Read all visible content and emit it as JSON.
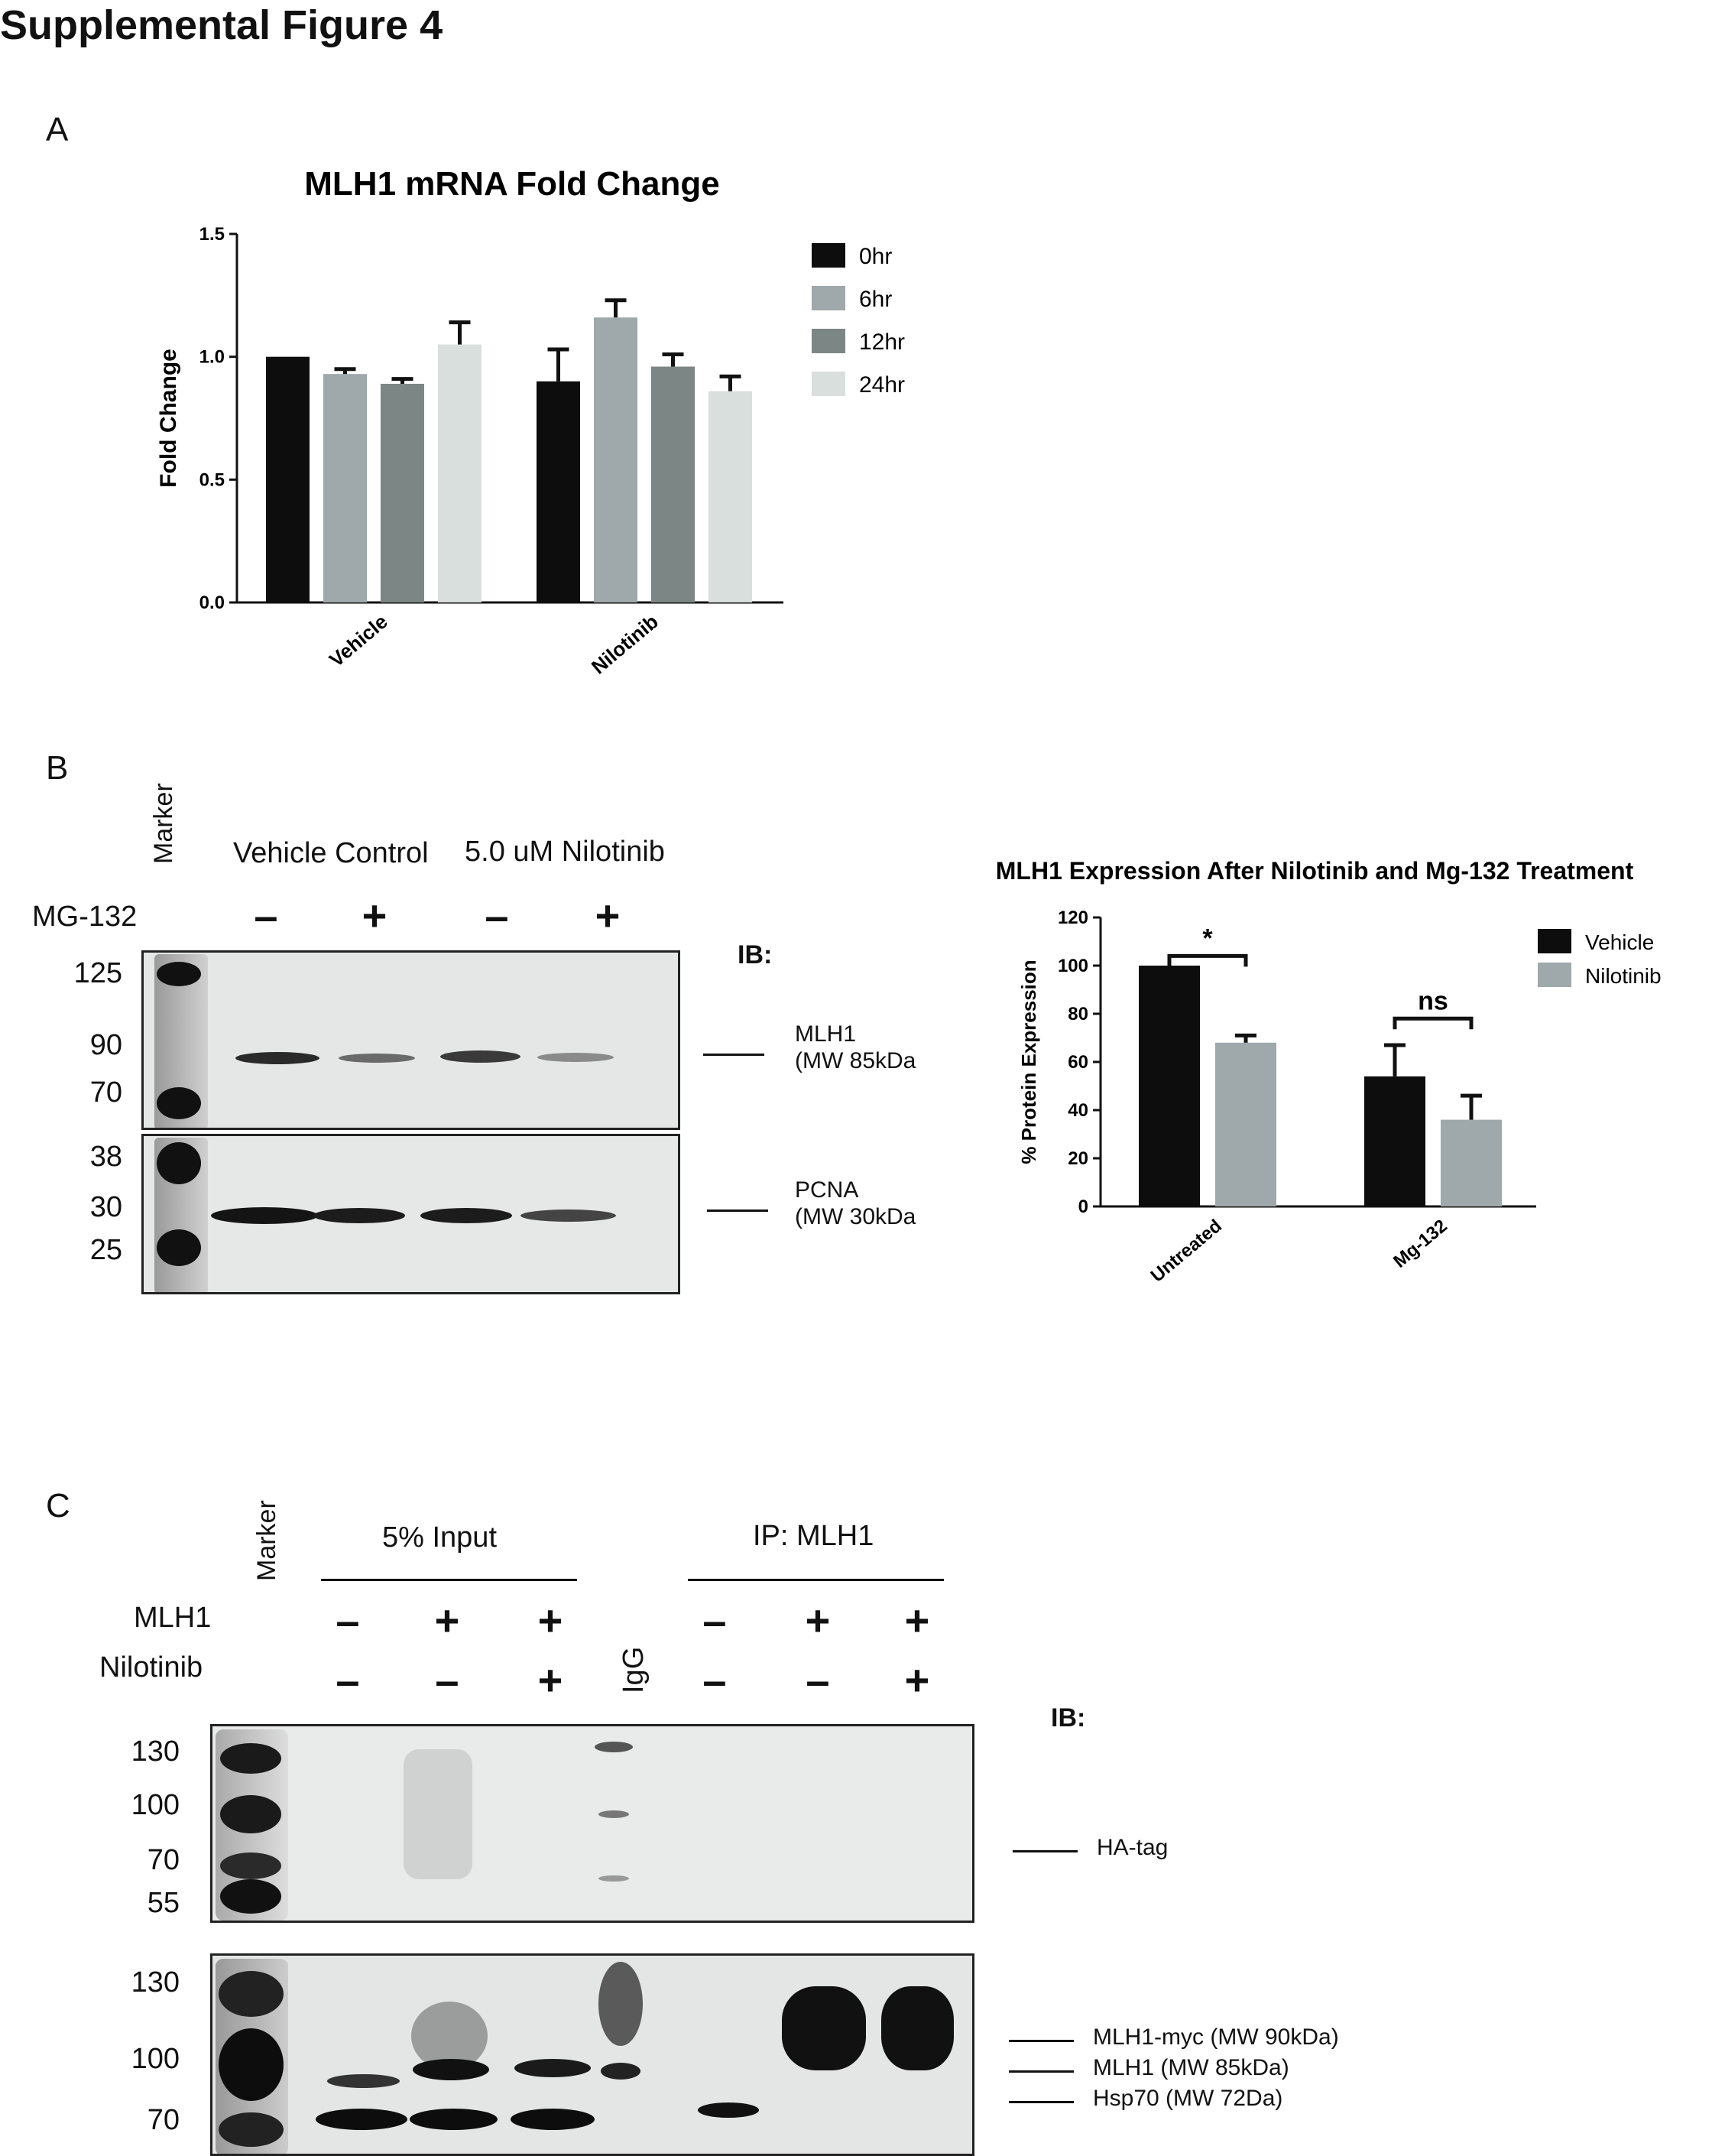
{
  "figure_title": "Supplemental Figure 4",
  "panels": {
    "a": "A",
    "b": "B",
    "c": "C"
  },
  "chart_data": [
    {
      "type": "bar",
      "title": "MLH1 mRNA Fold Change",
      "ylabel": "Fold  Change",
      "xlabel": "",
      "categories": [
        "Vehicle",
        "Nilotinib"
      ],
      "ylim": [
        0,
        1.5
      ],
      "yticks": [
        "0.0",
        "0.5",
        "1.0",
        "1.5"
      ],
      "legend_position": "top-right",
      "series": [
        {
          "name": "0hr",
          "color": "#0d0d0d",
          "values": [
            1.0,
            0.9
          ],
          "errors": [
            0.0,
            0.13
          ]
        },
        {
          "name": "6hr",
          "color": "#9fa8ab",
          "values": [
            0.93,
            1.16
          ],
          "errors": [
            0.02,
            0.07
          ]
        },
        {
          "name": "12hr",
          "color": "#7c8684",
          "values": [
            0.89,
            0.96
          ],
          "errors": [
            0.02,
            0.05
          ]
        },
        {
          "name": "24hr",
          "color": "#d9dfdd",
          "values": [
            1.05,
            0.86
          ],
          "errors": [
            0.09,
            0.06
          ]
        }
      ]
    },
    {
      "type": "bar",
      "title": "MLH1  Expression After Nilotinib and Mg-132  Treatment",
      "ylabel": "% Protein Expression",
      "xlabel": "",
      "categories": [
        "Untreated",
        "Mg-132"
      ],
      "ylim": [
        0,
        120
      ],
      "yticks": [
        "0",
        "20",
        "40",
        "60",
        "80",
        "100",
        "120"
      ],
      "legend_position": "top-right",
      "series": [
        {
          "name": "Vehicle",
          "color": "#0d0d0d",
          "values": [
            100,
            54
          ],
          "errors": [
            0,
            13
          ]
        },
        {
          "name": "Nilotinib",
          "color": "#9fa8ab",
          "values": [
            68,
            36
          ],
          "errors": [
            3,
            10
          ]
        }
      ],
      "significance": [
        "*",
        "ns"
      ]
    }
  ],
  "blot_b": {
    "marker_label": "Marker",
    "group_labels": [
      "Vehicle Control",
      "5.0 uM Nilotinib"
    ],
    "mg132_label": "MG-132",
    "mg132_signs": [
      "–",
      "+",
      "–",
      "+"
    ],
    "ib_label": "IB:",
    "mw_top": [
      "125",
      "90",
      "70"
    ],
    "mw_bottom": [
      "38",
      "30",
      "25"
    ],
    "annotations": [
      {
        "line1": "MLH1",
        "line2": "(MW 85kDa"
      },
      {
        "line1": "PCNA",
        "line2": "(MW 30kDa"
      }
    ]
  },
  "blot_c": {
    "marker_label": "Marker",
    "group_labels": [
      "5% Input",
      "IP: MLH1"
    ],
    "row_labels": [
      "MLH1",
      "Nilotinib"
    ],
    "mlh1_signs": [
      "–",
      "+",
      "+",
      "–",
      "+",
      "+"
    ],
    "nilotinib_signs": [
      "–",
      "–",
      "+",
      "–",
      "–",
      "+"
    ],
    "igg_label": "IgG",
    "ib_label": "IB:",
    "mw_top": [
      "130",
      "100",
      "70",
      "55"
    ],
    "mw_bottom": [
      "130",
      "100",
      "70"
    ],
    "annotations": [
      "HA-tag",
      "MLH1-myc (MW  90kDa)",
      "MLH1 (MW 85kDa)",
      "Hsp70 (MW 72Da)"
    ]
  }
}
